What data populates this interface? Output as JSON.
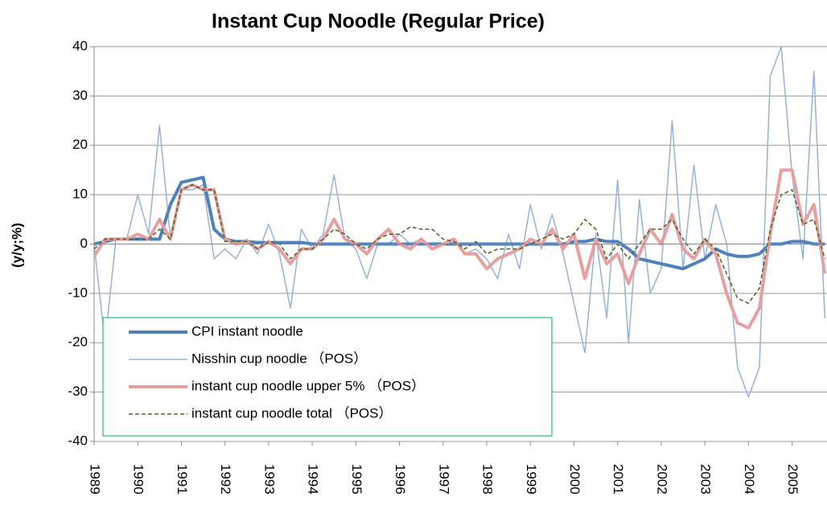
{
  "chart_data": {
    "type": "line",
    "title": "Instant Cup Noodle (Regular Price)",
    "y_label": "(y/y;%)",
    "x": [
      1989,
      1989.25,
      1989.5,
      1989.75,
      1990,
      1990.25,
      1990.5,
      1990.75,
      1991,
      1991.25,
      1991.5,
      1991.75,
      1992,
      1992.25,
      1992.5,
      1992.75,
      1993,
      1993.25,
      1993.5,
      1993.75,
      1994,
      1994.25,
      1994.5,
      1994.75,
      1995,
      1995.25,
      1995.5,
      1995.75,
      1996,
      1996.25,
      1996.5,
      1996.75,
      1997,
      1997.25,
      1997.5,
      1997.75,
      1998,
      1998.25,
      1998.5,
      1998.75,
      1999,
      1999.25,
      1999.5,
      1999.75,
      2000,
      2000.25,
      2000.5,
      2000.75,
      2001,
      2001.25,
      2001.5,
      2001.75,
      2002,
      2002.25,
      2002.5,
      2002.75,
      2003,
      2003.25,
      2003.5,
      2003.75,
      2004,
      2004.25,
      2004.5,
      2004.75,
      2005,
      2005.25,
      2005.5,
      2005.75
    ],
    "series": [
      {
        "name": "CPI instant noodle",
        "color": "#4f81bd",
        "line_width": 4,
        "style": "solid",
        "values": [
          0,
          0.5,
          1,
          1,
          1,
          1,
          1,
          8,
          12.5,
          13,
          13.5,
          3,
          1,
          0.5,
          0.5,
          0.3,
          0.3,
          0.3,
          0.3,
          0.3,
          0,
          0,
          0,
          0,
          0,
          0,
          0,
          0,
          0,
          0,
          0,
          0,
          0,
          0,
          0,
          0,
          0,
          0,
          0,
          0,
          0,
          0,
          0,
          0,
          0.5,
          0.5,
          1,
          0.5,
          0.5,
          -1,
          -3,
          -3.5,
          -4,
          -4.5,
          -5,
          -4,
          -3,
          -1,
          -2,
          -2.5,
          -2.5,
          -2,
          0,
          0,
          0.5,
          0.5,
          0,
          0
        ]
      },
      {
        "name": "Nisshin cup noodle （POS）",
        "color": "#95b3d7",
        "line_width": 1.5,
        "style": "solid",
        "values": [
          0,
          -20,
          1,
          1,
          10,
          2,
          24,
          1,
          11,
          11,
          12,
          -3,
          -1,
          -3,
          1,
          -2,
          4,
          -2,
          -13,
          3,
          -1,
          2,
          14,
          1,
          -1,
          -7,
          0,
          0,
          2,
          0,
          1,
          -1,
          0,
          1,
          -2,
          -1,
          -3,
          -7,
          2,
          -5,
          8,
          -1,
          6,
          -2,
          -12,
          -22,
          2,
          -15,
          13,
          -20,
          9,
          -10,
          -5,
          25,
          -5,
          16,
          -3,
          8,
          0,
          -25,
          -31,
          -25,
          34,
          40,
          14,
          -3,
          35,
          -15
        ]
      },
      {
        "name": "instant cup noodle upper 5% （POS）",
        "color": "#e6a0a0",
        "line_width": 4,
        "style": "solid",
        "values": [
          -2.5,
          1,
          1,
          1,
          2,
          1,
          5,
          1,
          11,
          12,
          11,
          11,
          1,
          0,
          0.5,
          -1,
          0.5,
          -1,
          -4,
          -1,
          -1,
          1,
          5,
          1,
          0,
          -2,
          1,
          3,
          0,
          -1,
          1,
          -1,
          0,
          1,
          -2,
          -2,
          -5,
          -3,
          -2,
          -1,
          1,
          0,
          3,
          -1,
          2,
          -7,
          1,
          -4,
          -2,
          -8,
          -2,
          3,
          0,
          6,
          -1,
          -3,
          1,
          -2,
          -10,
          -16,
          -17,
          -13,
          2,
          15,
          15,
          4,
          8,
          -6
        ]
      },
      {
        "name": "instant cup noodle total （POS）",
        "color": "#4f6228",
        "line_width": 1.5,
        "style": "dashed",
        "values": [
          -1,
          1,
          1,
          1,
          1,
          1,
          3,
          1,
          11,
          12,
          11,
          11,
          0.5,
          0.5,
          0.5,
          -1,
          0.5,
          0,
          -3,
          -1,
          -1,
          1,
          3,
          2,
          0,
          -1,
          1,
          2,
          2,
          3.5,
          3,
          3,
          1,
          0.5,
          -1,
          0.5,
          -2,
          -1,
          -1,
          -1,
          0,
          1,
          2,
          1,
          2,
          5,
          3,
          -3,
          0,
          -3,
          0,
          3,
          3,
          5,
          1,
          -2,
          1,
          -1,
          -6,
          -11,
          -12,
          -9,
          3,
          10,
          11,
          4,
          5,
          -3
        ]
      }
    ],
    "xlim": [
      1989,
      2005.8
    ],
    "xticks": [
      1989,
      1990,
      1991,
      1992,
      1993,
      1994,
      1995,
      1996,
      1997,
      1998,
      1999,
      2000,
      2001,
      2002,
      2003,
      2004,
      2005
    ],
    "ylim": [
      -40,
      40
    ],
    "yticks": [
      -40,
      -30,
      -20,
      -10,
      0,
      10,
      20,
      30,
      40
    ],
    "grid": true,
    "legend": "lower left"
  }
}
